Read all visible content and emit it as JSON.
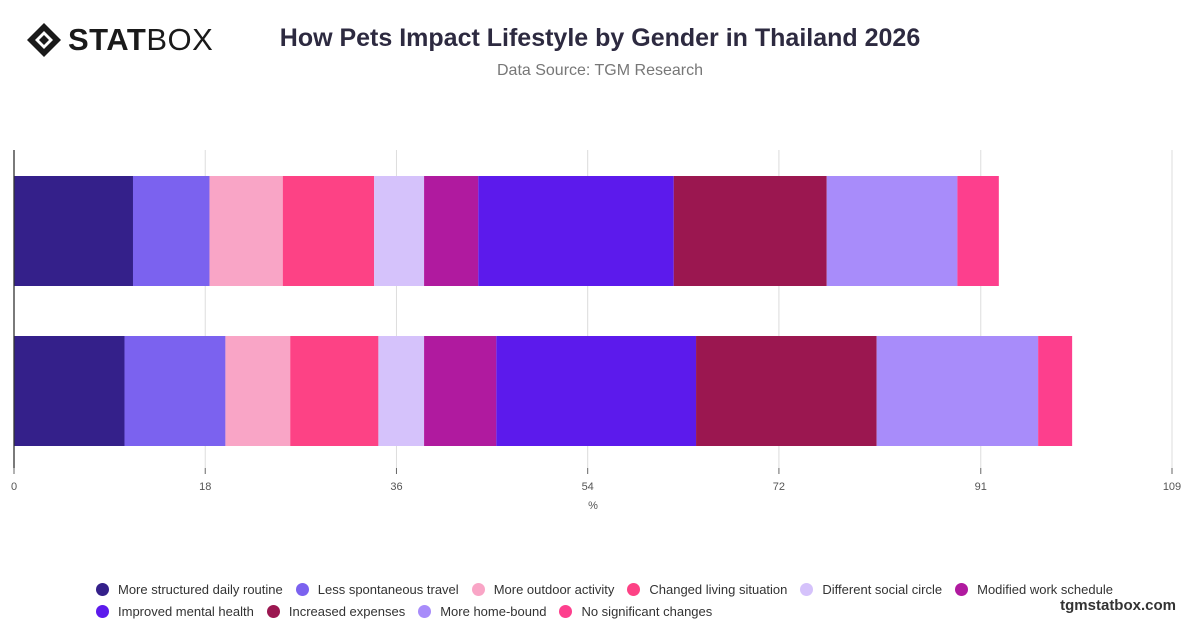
{
  "header": {
    "logo_bold": "STAT",
    "logo_light": "BOX",
    "title": "How Pets Impact Lifestyle by Gender in Thailand 2026",
    "subtitle": "Data Source: TGM Research"
  },
  "footer": {
    "brand": "tgmstatbox.com"
  },
  "chart_data": {
    "type": "bar",
    "orientation": "horizontal",
    "stacked": true,
    "categories": [
      "",
      ""
    ],
    "xlabel": "%",
    "ylabel": "",
    "xlim": [
      0,
      109
    ],
    "x_ticks": [
      0,
      18,
      36,
      54,
      72,
      91,
      109
    ],
    "grid": true,
    "legend_position": "bottom",
    "series": [
      {
        "name": "More structured daily routine",
        "color": "#34208a",
        "values": [
          11.2,
          10.4
        ]
      },
      {
        "name": "Less spontaneous travel",
        "color": "#7b62ef",
        "values": [
          7.2,
          9.5
        ]
      },
      {
        "name": "More outdoor activity",
        "color": "#f9a5c6",
        "values": [
          6.9,
          6.1
        ]
      },
      {
        "name": "Changed living situation",
        "color": "#fd4285",
        "values": [
          8.6,
          8.3
        ]
      },
      {
        "name": "Different social circle",
        "color": "#d5c2fb",
        "values": [
          4.7,
          4.3
        ]
      },
      {
        "name": "Modified work schedule",
        "color": "#b01a9f",
        "values": [
          5.1,
          6.8
        ]
      },
      {
        "name": "Improved mental health",
        "color": "#5c1aec",
        "values": [
          18.4,
          18.8
        ]
      },
      {
        "name": "Increased expenses",
        "color": "#9b1750",
        "values": [
          14.4,
          17.0
        ]
      },
      {
        "name": "More home-bound",
        "color": "#a88cfa",
        "values": [
          12.3,
          15.2
        ]
      },
      {
        "name": "No significant changes",
        "color": "#fd3f8d",
        "values": [
          3.9,
          3.2
        ]
      }
    ]
  }
}
